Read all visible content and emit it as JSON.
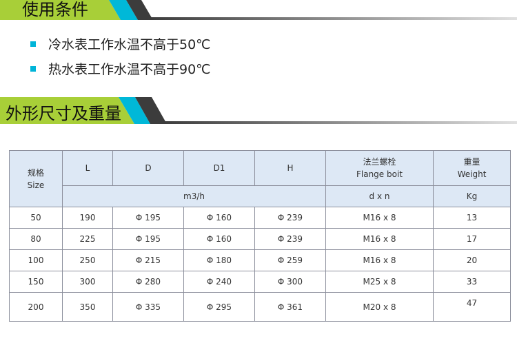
{
  "section1": {
    "title": "使用条件"
  },
  "conditions": [
    "冷水表工作水温不高于50℃",
    "热水表工作水温不高于90℃"
  ],
  "section2": {
    "title": "外形尺寸及重量"
  },
  "colors": {
    "green": "#a8cf38",
    "cyan": "#00b8d8",
    "dark": "#3c3c3c"
  },
  "table": {
    "headers": {
      "size_cn": "规格",
      "size_en": "Size",
      "L": "L",
      "D": "D",
      "D1": "D1",
      "H": "H",
      "flange_cn": "法兰螺栓",
      "flange_en": "Flange boit",
      "weight_cn": "重量",
      "weight_en": "Weight",
      "unit_dims": "m3/h",
      "unit_flange": "d x n",
      "unit_weight": "Kg"
    },
    "rows": [
      [
        "50",
        "190",
        "Φ 195",
        "Φ 160",
        "Φ 239",
        "M16 x 8",
        "13"
      ],
      [
        "80",
        "225",
        "Φ 195",
        "Φ 160",
        "Φ 239",
        "M16 x 8",
        "17"
      ],
      [
        "100",
        "250",
        "Φ 215",
        "Φ 180",
        "Φ 259",
        "M16 x 8",
        "20"
      ],
      [
        "150",
        "300",
        "Φ 280",
        "Φ 240",
        "Φ 300",
        "M25 x 8",
        "33"
      ],
      [
        "200",
        "350",
        "Φ 335",
        "Φ 295",
        "Φ 361",
        "M20 x 8",
        "47"
      ]
    ]
  }
}
